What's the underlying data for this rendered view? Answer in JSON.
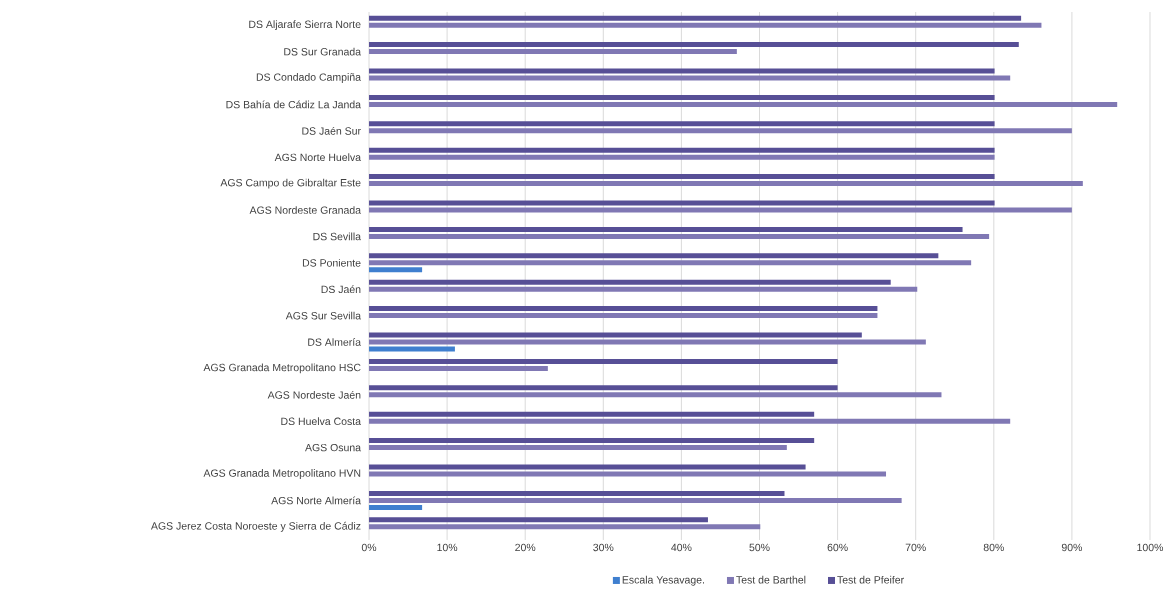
{
  "chart_data": {
    "type": "bar",
    "orientation": "horizontal",
    "categories": [
      "DS Aljarafe Sierra Norte",
      "DS Sur Granada",
      "DS Condado Campiña",
      "DS Bahía de Cádiz La Janda",
      "DS Jaén Sur",
      "AGS Norte Huelva",
      "AGS Campo de Gibraltar Este",
      "AGS Nordeste Granada",
      "DS Sevilla",
      "DS Poniente",
      "DS Jaén",
      "AGS Sur Sevilla",
      "DS Almería",
      "AGS Granada Metropolitano HSC",
      "AGS Nordeste Jaén",
      "DS Huelva Costa",
      "AGS Osuna",
      "AGS Granada Metropolitano HVN",
      "AGS Norte Almería",
      "AGS Jerez Costa Noroeste y Sierra de Cádiz"
    ],
    "series": [
      {
        "name": "Escala Yesavage.",
        "color": "#3f7fcf",
        "values": [
          null,
          null,
          null,
          null,
          null,
          null,
          null,
          null,
          null,
          6.8,
          null,
          null,
          11.0,
          null,
          null,
          null,
          null,
          null,
          6.8,
          null
        ]
      },
      {
        "name": "Test de Barthel",
        "color": "#8078b4",
        "values": [
          86.1,
          47.1,
          82.1,
          95.8,
          90.0,
          80.1,
          91.4,
          90.0,
          79.4,
          77.1,
          70.2,
          65.1,
          71.3,
          22.9,
          73.3,
          82.1,
          53.5,
          66.2,
          68.2,
          50.1
        ]
      },
      {
        "name": "Test de Pfeifer",
        "color": "#574f96",
        "values": [
          83.5,
          83.2,
          80.1,
          80.1,
          80.1,
          80.1,
          80.1,
          80.1,
          76.0,
          72.9,
          66.8,
          65.1,
          63.1,
          60.0,
          60.0,
          57.0,
          57.0,
          55.9,
          53.2,
          43.4
        ]
      }
    ],
    "xlim": [
      0,
      100
    ],
    "xticks": [
      {
        "value": 0,
        "label": "0%"
      },
      {
        "value": 10,
        "label": "10%"
      },
      {
        "value": 20,
        "label": "20%"
      },
      {
        "value": 30,
        "label": "30%"
      },
      {
        "value": 40,
        "label": "40%"
      },
      {
        "value": 50,
        "label": "50%"
      },
      {
        "value": 60,
        "label": "60%"
      },
      {
        "value": 70,
        "label": "70%"
      },
      {
        "value": 80,
        "label": "80%"
      },
      {
        "value": 90,
        "label": "90%"
      },
      {
        "value": 100,
        "label": "100%"
      }
    ],
    "grid": "x",
    "legend": "bottom"
  }
}
